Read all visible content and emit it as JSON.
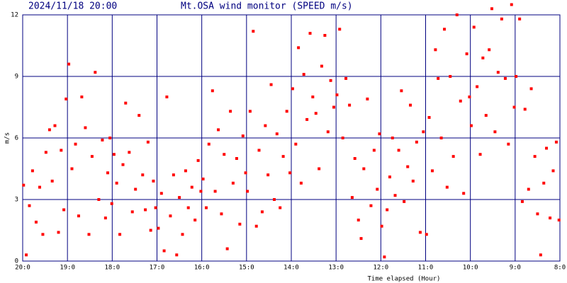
{
  "chart_data": {
    "type": "scatter",
    "date": "2024/11/18 20:00",
    "title": "Mt.OSA wind monitor (SPEED m/s)",
    "x_label": "Time elapsed (Hour)",
    "y_label": "m/s",
    "color": "#ff0000",
    "grid": true,
    "xlim": [
      0,
      12
    ],
    "xticks": [
      {
        "value": 0,
        "label": "20:0"
      },
      {
        "value": 1,
        "label": "19:0"
      },
      {
        "value": 2,
        "label": "18:0"
      },
      {
        "value": 3,
        "label": "17:0"
      },
      {
        "value": 4,
        "label": "16:0"
      },
      {
        "value": 5,
        "label": "15:0"
      },
      {
        "value": 6,
        "label": "14:0"
      },
      {
        "value": 7,
        "label": "13:0"
      },
      {
        "value": 8,
        "label": "12:0"
      },
      {
        "value": 9,
        "label": "11:0"
      },
      {
        "value": 10,
        "label": "10:0"
      },
      {
        "value": 11,
        "label": "9:0"
      },
      {
        "value": 12,
        "label": "8:0"
      }
    ],
    "ylim": [
      0,
      12
    ],
    "yticks": [
      0,
      3,
      6,
      9,
      12
    ],
    "x": [
      0.02,
      0.08,
      0.15,
      0.22,
      0.3,
      0.38,
      0.45,
      0.52,
      0.6,
      0.66,
      0.72,
      0.8,
      0.86,
      0.92,
      0.97,
      1.03,
      1.1,
      1.18,
      1.25,
      1.32,
      1.4,
      1.48,
      1.55,
      1.62,
      1.7,
      1.78,
      1.85,
      1.9,
      1.95,
      1.99,
      2.04,
      2.1,
      2.17,
      2.24,
      2.3,
      2.38,
      2.45,
      2.52,
      2.6,
      2.68,
      2.74,
      2.8,
      2.86,
      2.92,
      2.97,
      3.03,
      3.1,
      3.16,
      3.22,
      3.3,
      3.37,
      3.44,
      3.5,
      3.57,
      3.64,
      3.7,
      3.78,
      3.85,
      3.92,
      3.98,
      4.03,
      4.1,
      4.16,
      4.24,
      4.3,
      4.37,
      4.44,
      4.5,
      4.57,
      4.64,
      4.7,
      4.78,
      4.85,
      4.92,
      4.98,
      5.02,
      5.08,
      5.15,
      5.22,
      5.28,
      5.35,
      5.42,
      5.48,
      5.55,
      5.62,
      5.68,
      5.75,
      5.82,
      5.9,
      5.97,
      6.03,
      6.1,
      6.16,
      6.22,
      6.28,
      6.35,
      6.42,
      6.48,
      6.55,
      6.62,
      6.68,
      6.75,
      6.82,
      6.88,
      6.95,
      7.02,
      7.08,
      7.15,
      7.22,
      7.3,
      7.36,
      7.42,
      7.5,
      7.56,
      7.62,
      7.7,
      7.78,
      7.85,
      7.92,
      7.97,
      8.02,
      8.08,
      8.14,
      8.2,
      8.26,
      8.32,
      8.4,
      8.46,
      8.52,
      8.6,
      8.66,
      8.72,
      8.8,
      8.88,
      8.95,
      9.02,
      9.08,
      9.15,
      9.22,
      9.28,
      9.35,
      9.42,
      9.48,
      9.55,
      9.62,
      9.7,
      9.78,
      9.85,
      9.92,
      9.98,
      10.02,
      10.08,
      10.15,
      10.22,
      10.28,
      10.35,
      10.42,
      10.48,
      10.55,
      10.62,
      10.7,
      10.78,
      10.85,
      10.92,
      10.98,
      11.02,
      11.1,
      11.16,
      11.22,
      11.3,
      11.36,
      11.44,
      11.5,
      11.57,
      11.64,
      11.7,
      11.78,
      11.85,
      11.92,
      11.98
    ],
    "values": [
      3.7,
      0.3,
      2.7,
      4.4,
      1.9,
      3.6,
      1.3,
      5.3,
      6.4,
      3.9,
      6.6,
      1.4,
      5.4,
      2.5,
      7.9,
      9.6,
      4.5,
      5.7,
      2.2,
      8.0,
      6.5,
      1.3,
      5.1,
      9.2,
      3.0,
      5.9,
      2.1,
      4.3,
      6.0,
      2.8,
      5.2,
      3.8,
      1.3,
      4.7,
      7.7,
      5.3,
      2.4,
      3.5,
      7.1,
      4.2,
      2.5,
      5.8,
      1.5,
      3.9,
      2.6,
      1.6,
      3.3,
      0.5,
      8.0,
      2.2,
      4.2,
      0.3,
      3.1,
      1.3,
      4.4,
      2.6,
      3.6,
      2.0,
      4.9,
      3.4,
      4.0,
      2.6,
      5.7,
      8.3,
      3.4,
      6.4,
      2.3,
      5.2,
      0.6,
      7.3,
      3.8,
      5.0,
      1.8,
      6.1,
      4.3,
      3.4,
      7.3,
      11.2,
      1.7,
      5.4,
      2.4,
      6.6,
      4.2,
      8.6,
      3.0,
      6.2,
      2.6,
      5.1,
      7.3,
      4.3,
      8.4,
      5.7,
      10.4,
      3.8,
      9.1,
      6.9,
      11.1,
      8.0,
      7.2,
      4.5,
      9.5,
      11.0,
      6.3,
      8.8,
      7.5,
      8.1,
      11.3,
      6.0,
      8.9,
      7.6,
      3.1,
      5.0,
      2.0,
      1.1,
      4.5,
      7.9,
      2.7,
      5.4,
      3.5,
      6.2,
      1.7,
      0.2,
      2.5,
      4.1,
      6.0,
      3.2,
      5.4,
      8.3,
      2.9,
      4.6,
      7.6,
      3.9,
      5.8,
      1.4,
      6.3,
      1.3,
      7.0,
      4.4,
      10.3,
      8.9,
      6.0,
      11.3,
      3.6,
      9.0,
      5.1,
      12.0,
      7.8,
      3.3,
      10.1,
      8.0,
      6.6,
      11.4,
      8.5,
      5.2,
      9.9,
      7.1,
      10.3,
      12.3,
      6.3,
      9.2,
      11.8,
      8.9,
      5.7,
      12.5,
      7.5,
      9.0,
      11.8,
      2.9,
      7.4,
      3.5,
      8.4,
      5.1,
      2.3,
      0.3,
      3.8,
      5.5,
      2.1,
      4.4,
      5.8,
      2.0
    ]
  }
}
